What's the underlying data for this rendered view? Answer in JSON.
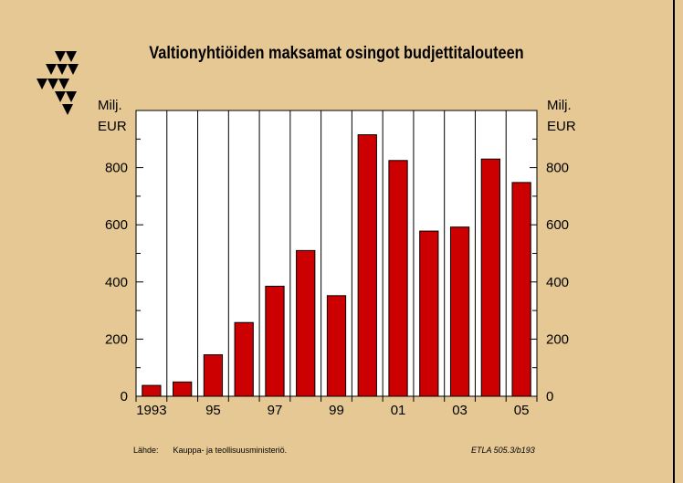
{
  "title": "Valtionyhtiöiden maksamat osingot budjettitalouteen",
  "unit_left": {
    "line1": "Milj.",
    "line2": "EUR"
  },
  "unit_right": {
    "line1": "Milj.",
    "line2": "EUR"
  },
  "footer": {
    "source_label": "Lähde:",
    "source_text": "Kauppa- ja teollisuusministeriö.",
    "code": "ETLA 505.3/b193"
  },
  "colors": {
    "bar": "#cc0000",
    "background": "#e6c894",
    "plot_background": "#ffffff",
    "logo": "#000000"
  },
  "logo": {
    "icon": "etla-triangles-logo"
  },
  "chart_data": {
    "type": "bar",
    "x": [
      1993,
      1994,
      1995,
      1996,
      1997,
      1998,
      1999,
      2000,
      2001,
      2002,
      2003,
      2004,
      2005
    ],
    "values": [
      38,
      50,
      145,
      258,
      385,
      510,
      352,
      915,
      825,
      578,
      592,
      830,
      748
    ],
    "xtick_labels": [
      "1993",
      "95",
      "97",
      "99",
      "01",
      "03",
      "05"
    ],
    "xtick_years": [
      1993,
      1995,
      1997,
      1999,
      2001,
      2003,
      2005
    ],
    "yticks": [
      0,
      200,
      400,
      600,
      800
    ],
    "ytick_labels": [
      "0",
      "200",
      "400",
      "600",
      "800"
    ],
    "ylim": [
      0,
      1000
    ],
    "title": "Valtionyhtiöiden maksamat osingot budjettitalouteen",
    "xlabel": "",
    "ylabel": "Milj. EUR",
    "grid": "vertical",
    "legend": "none"
  }
}
